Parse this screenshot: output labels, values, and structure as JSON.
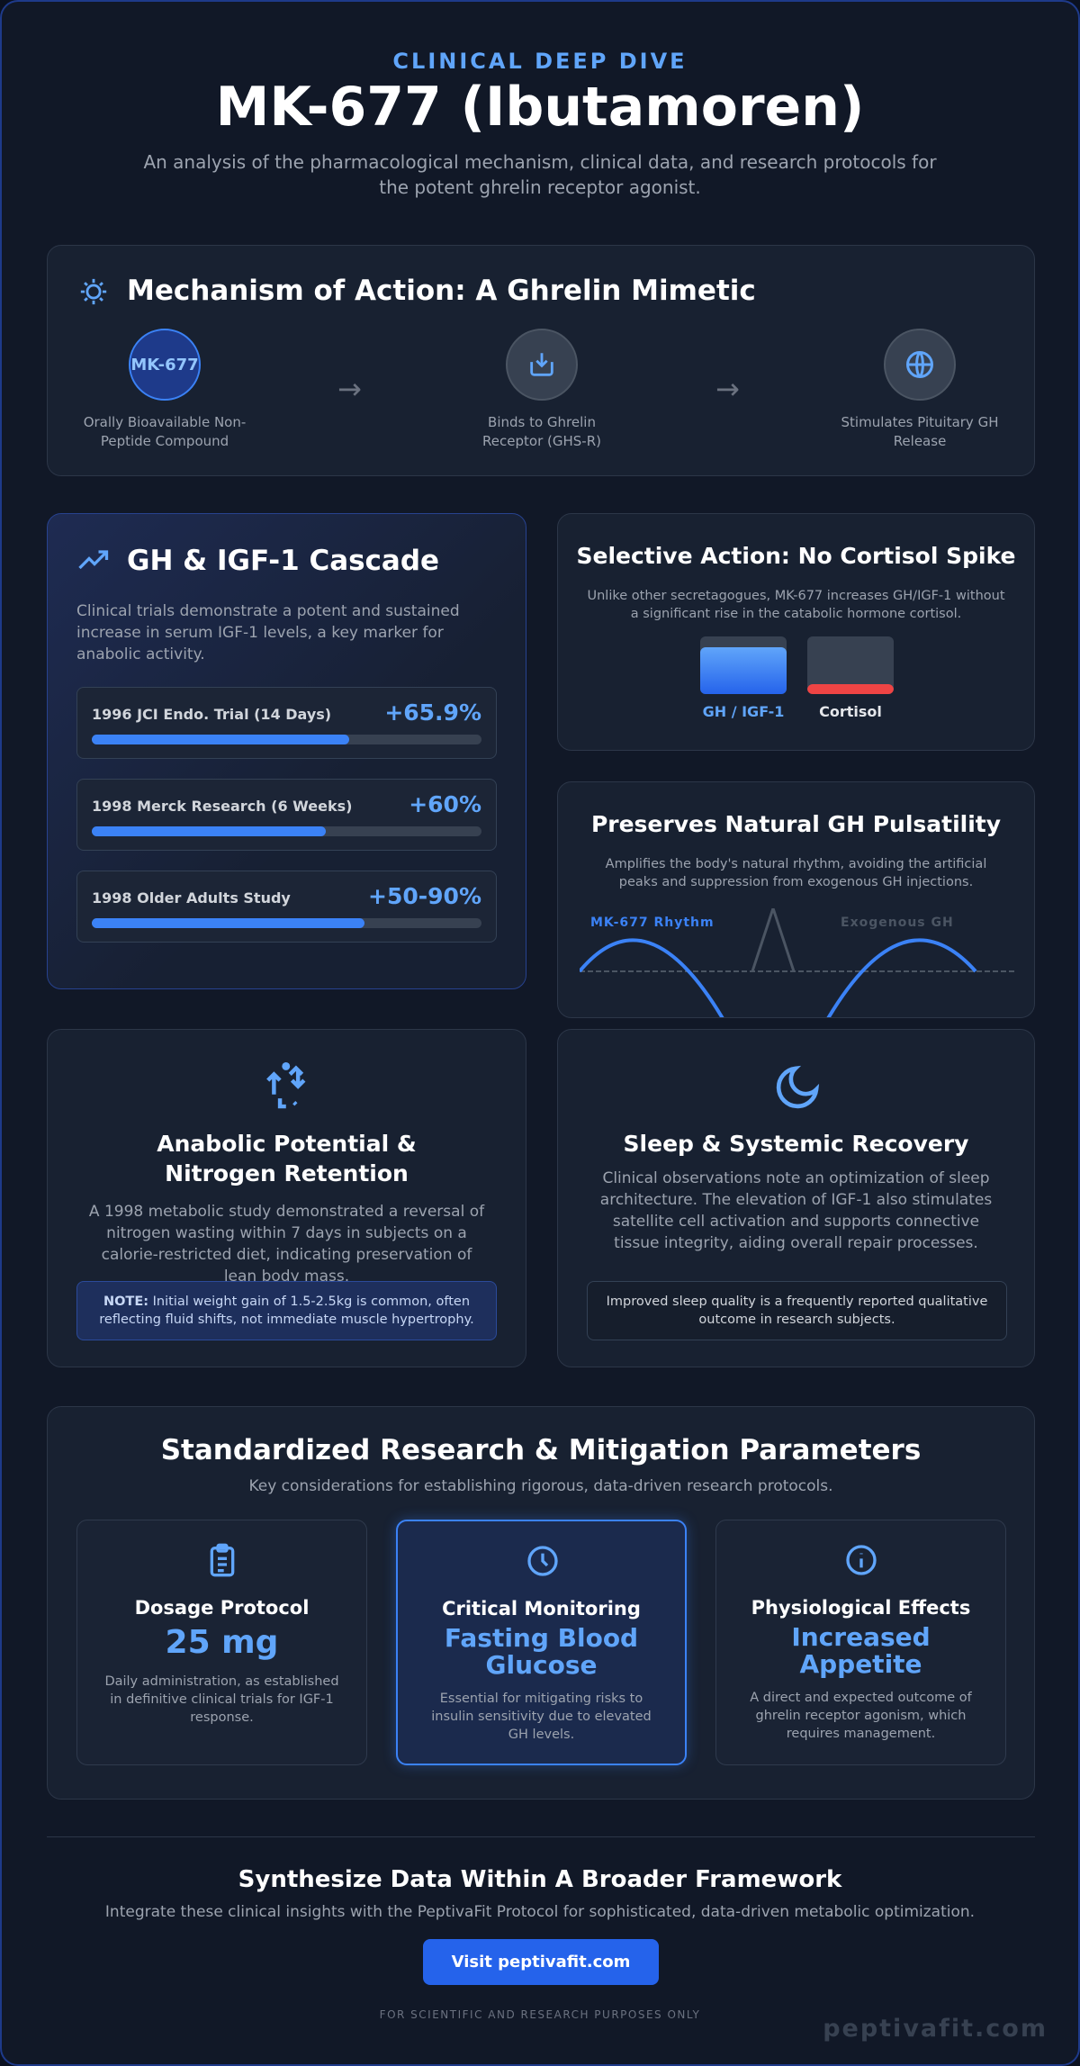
{
  "header": {
    "eyebrow": "CLINICAL DEEP DIVE",
    "title": "MK-677 (Ibutamoren)",
    "subtitle": "An analysis of the pharmacological mechanism, clinical data, and research protocols for the potent ghrelin receptor agonist."
  },
  "mechanism": {
    "title": "Mechanism of Action: A Ghrelin Mimetic",
    "badge": "MK-677",
    "steps": [
      "Orally Bioavailable Non-Peptide Compound",
      "Binds to Ghrelin Receptor (GHS-R)",
      "Stimulates Pituitary GH Release"
    ]
  },
  "cascade": {
    "title": "GH & IGF-1 Cascade",
    "description": "Clinical trials demonstrate a potent and sustained increase in serum IGF-1 levels, a key marker for anabolic activity.",
    "studies": [
      {
        "name": "1996 JCI Endo. Trial (14 Days)",
        "value": "+65.9%"
      },
      {
        "name": "1998 Merck Research (6 Weeks)",
        "value": "+60%"
      },
      {
        "name": "1998 Older Adults Study",
        "value": "+50-90%"
      }
    ]
  },
  "selective": {
    "title": "Selective Action: No Cortisol Spike",
    "description": "Unlike other secretagogues, MK-677 increases GH/IGF-1 without a significant rise in the catabolic hormone cortisol.",
    "bars": [
      "GH / IGF-1",
      "Cortisol"
    ]
  },
  "pulsatility": {
    "title": "Preserves Natural GH Pulsatility",
    "description": "Amplifies the body's natural rhythm, avoiding the artificial peaks and suppression from exogenous GH injections.",
    "labels": [
      "MK-677 Rhythm",
      "Exogenous GH"
    ]
  },
  "anabolic": {
    "title": "Anabolic Potential & Nitrogen Retention",
    "description": "A 1998 metabolic study demonstrated a reversal of nitrogen wasting within 7 days in subjects on a calorie-restricted diet, indicating preservation of lean body mass.",
    "note_label": "NOTE:",
    "note": "Initial weight gain of 1.5-2.5kg is common, often reflecting fluid shifts, not immediate muscle hypertrophy."
  },
  "sleep": {
    "title": "Sleep & Systemic Recovery",
    "description": "Clinical observations note an optimization of sleep architecture. The elevation of IGF-1 also stimulates satellite cell activation and supports connective tissue integrity, aiding overall repair processes.",
    "note": "Improved sleep quality is a frequently reported qualitative outcome in research subjects."
  },
  "parameters": {
    "title": "Standardized Research & Mitigation Parameters",
    "subtitle": "Key considerations for establishing rigorous, data-driven research protocols.",
    "cards": [
      {
        "title": "Dosage Protocol",
        "value": "25 mg",
        "description": "Daily administration, as established in definitive clinical trials for IGF-1 response."
      },
      {
        "title": "Critical Monitoring",
        "value": "Fasting Blood Glucose",
        "description": "Essential for mitigating risks to insulin sensitivity due to elevated GH levels."
      },
      {
        "title": "Physiological Effects",
        "value": "Increased Appetite",
        "description": "A direct and expected outcome of ghrelin receptor agonism, which requires management."
      }
    ]
  },
  "footer": {
    "title": "Synthesize Data Within A Broader Framework",
    "description": "Integrate these clinical insights with the PeptivaFit Protocol for sophisticated, data-driven metabolic optimization.",
    "button": "Visit peptivafit.com",
    "disclaimer": "FOR SCIENTIFIC AND RESEARCH PURPOSES ONLY",
    "watermark": "peptivafit.com"
  }
}
